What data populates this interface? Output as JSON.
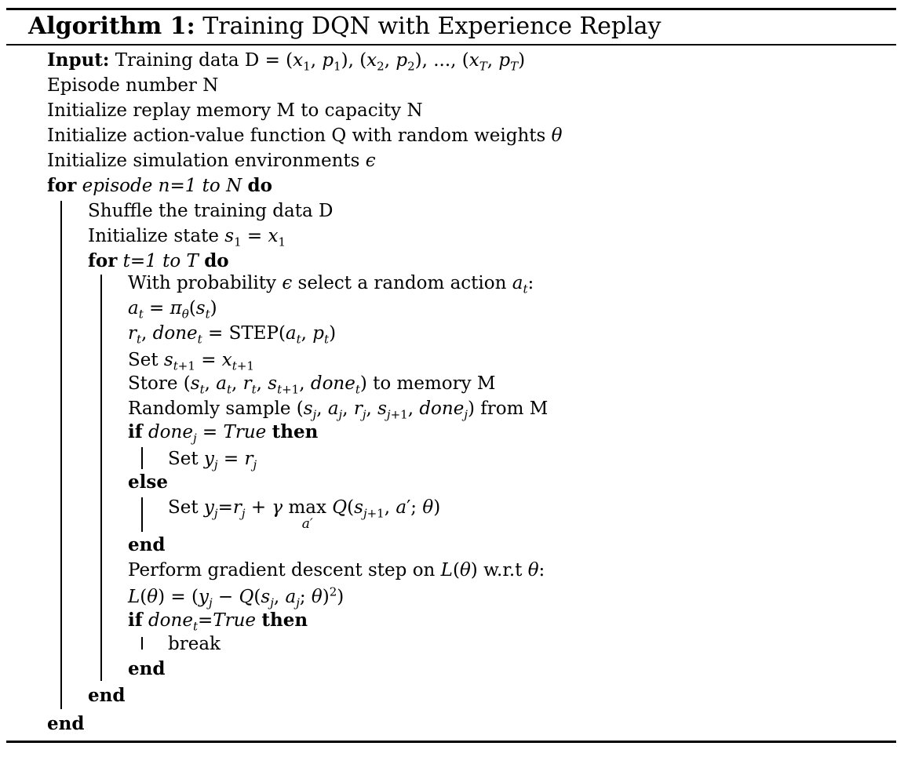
{
  "title": {
    "label": "Algorithm 1:",
    "text": "Training DQN with Experience Replay"
  },
  "lines": [
    {
      "id": "l1",
      "text": "<b>Input:</b> Training data D = (<i>x</i><sub>1</sub>, <i>p</i><sub>1</sub>), (<i>x</i><sub>2</sub>, <i>p</i><sub>2</sub>), ..., (<i>x<sub>T</sub></i>, <i>p<sub>T</sub></i>)"
    },
    {
      "id": "l2",
      "text": "Episode number N"
    },
    {
      "id": "l3",
      "text": "Initialize replay memory M to capacity N"
    },
    {
      "id": "l4",
      "text": "Initialize action-value function Q with random weights <i>θ</i>"
    },
    {
      "id": "l5",
      "text": "Initialize simulation environments <i>ϵ</i>"
    },
    {
      "id": "l6",
      "text": "<b>for</b> <i>episode n=1 to N</i> <b>do</b>"
    },
    {
      "id": "l7",
      "text": "Shuffle the training data D"
    },
    {
      "id": "l8",
      "text": "Initialize state <i>s</i><sub>1</sub> = <i>x</i><sub>1</sub>"
    },
    {
      "id": "l9",
      "text": "<b>for</b> <i>t=1 to T</i> <b>do</b>"
    },
    {
      "id": "l10",
      "text": "With probability <i>ϵ</i> select a random action <i>a<sub>t</sub></i>:"
    },
    {
      "id": "l11",
      "text": "<i>a<sub>t</sub></i> = <i>π<sub>θ</sub></i>(<i>s<sub>t</sub></i>)"
    },
    {
      "id": "l12",
      "text": "<i>r<sub>t</sub></i>, <i>done<sub>t</sub></i> = STEP(<i>a<sub>t</sub></i>, <i>p<sub>t</sub></i>)"
    },
    {
      "id": "l13",
      "text": "Set <i>s</i><sub><i>t</i>+1</sub> = <i>x</i><sub><i>t</i>+1</sub>"
    },
    {
      "id": "l14",
      "text": "Store (<i>s<sub>t</sub></i>, <i>a<sub>t</sub></i>, <i>r<sub>t</sub></i>, <i>s</i><sub><i>t</i>+1</sub>, <i>done<sub>t</sub></i>) to memory M"
    },
    {
      "id": "l15",
      "text": "Randomly sample (<i>s<sub>j</sub></i>, <i>a<sub>j</sub></i>, <i>r<sub>j</sub></i>, <i>s</i><sub><i>j</i>+1</sub>, <i>done<sub>j</sub></i>) from M"
    },
    {
      "id": "l16",
      "text": "<b>if</b> <i>done<sub>j</sub></i> = <i>True</i> <b>then</b>"
    },
    {
      "id": "l17",
      "text": "Set <i>y<sub>j</sub></i> = <i>r<sub>j</sub></i>"
    },
    {
      "id": "l18",
      "text": "<b>else</b>"
    },
    {
      "id": "l19",
      "text": "Set <i>y<sub>j</sub></i>=<i>r<sub>j</sub></i> + <i>γ</i> <span class=\"maxop\">max<span class=\"under\">a′</span></span> <i>Q</i>(<i>s</i><sub><i>j</i>+1</sub>, <i>a</i>′; <i>θ</i>)"
    },
    {
      "id": "l20",
      "text": "<b>end</b>"
    },
    {
      "id": "l21",
      "text": "Perform gradient descent step on <i>L</i>(<i>θ</i>) w.r.t <i>θ</i>:"
    },
    {
      "id": "l22",
      "text": "<i>L</i>(<i>θ</i>) = (<i>y<sub>j</sub></i> − <i>Q</i>(<i>s<sub>j</sub></i>, <i>a<sub>j</sub></i>; <i>θ</i>)<sup>2</sup>)"
    },
    {
      "id": "l23",
      "text": "<b>if</b> <i>done<sub>t</sub></i>=<i>True</i> <b>then</b>"
    },
    {
      "id": "l24",
      "text": "break"
    },
    {
      "id": "l25",
      "text": "<b>end</b>"
    },
    {
      "id": "l26",
      "text": "<b>end</b>"
    },
    {
      "id": "l27",
      "text": "<b>end</b>"
    }
  ]
}
